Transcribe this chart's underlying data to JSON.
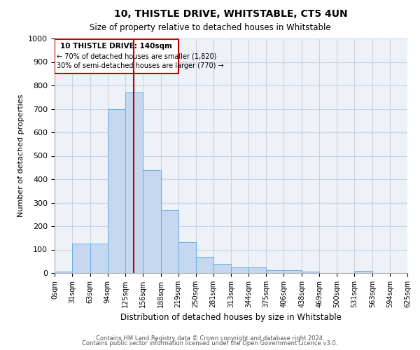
{
  "title1": "10, THISTLE DRIVE, WHITSTABLE, CT5 4UN",
  "title2": "Size of property relative to detached houses in Whitstable",
  "xlabel": "Distribution of detached houses by size in Whitstable",
  "ylabel": "Number of detached properties",
  "footnote1": "Contains HM Land Registry data © Crown copyright and database right 2024.",
  "footnote2": "Contains public sector information licensed under the Open Government Licence v3.0.",
  "bin_edges": [
    0,
    31,
    63,
    94,
    125,
    156,
    188,
    219,
    250,
    281,
    313,
    344,
    375,
    406,
    438,
    469,
    500,
    531,
    563,
    594,
    625
  ],
  "bar_heights": [
    5,
    125,
    125,
    700,
    770,
    440,
    270,
    130,
    70,
    40,
    25,
    25,
    12,
    12,
    7,
    0,
    0,
    8,
    0,
    0
  ],
  "bar_color": "#c5d8f0",
  "bar_edge_color": "#6aaee0",
  "property_size": 140,
  "vline_color": "#c00000",
  "annotation_box_color": "#c00000",
  "annotation_text_line1": "10 THISTLE DRIVE: 140sqm",
  "annotation_text_line2": "← 70% of detached houses are smaller (1,820)",
  "annotation_text_line3": "30% of semi-detached houses are larger (770) →",
  "ylim": [
    0,
    1000
  ],
  "yticks": [
    0,
    100,
    200,
    300,
    400,
    500,
    600,
    700,
    800,
    900,
    1000
  ],
  "background_color": "#ffffff",
  "grid_color": "#c8d4e3"
}
